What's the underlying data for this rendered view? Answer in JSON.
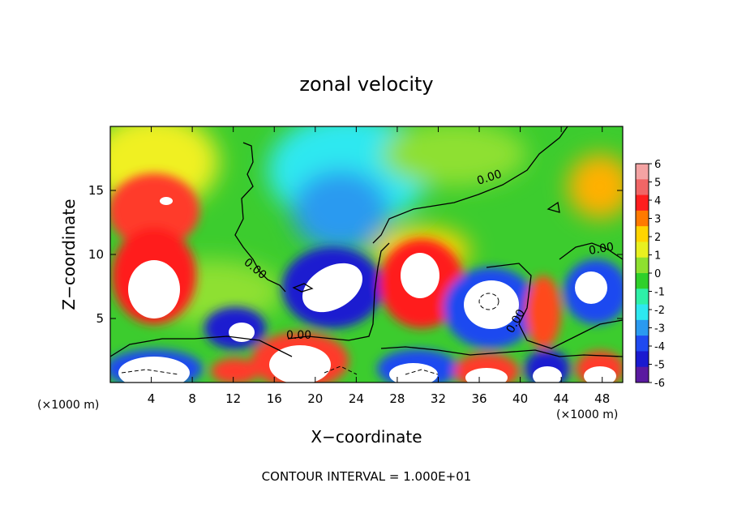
{
  "chart_data": {
    "type": "heatmap",
    "title": "zonal velocity",
    "xlabel": "X−coordinate",
    "ylabel": "Z−coordinate",
    "x_unit_left": "(×1000 m)",
    "x_unit_right": "(×1000 m)",
    "footer": "CONTOUR INTERVAL = 1.000E+01",
    "xlim": [
      0,
      50
    ],
    "ylim": [
      0,
      20
    ],
    "x_ticks": [
      4,
      8,
      12,
      16,
      20,
      24,
      28,
      32,
      36,
      40,
      44,
      48
    ],
    "y_ticks": [
      5,
      10,
      15
    ],
    "colorbar": {
      "ticks": [
        6,
        5,
        4,
        3,
        2,
        1,
        0,
        -1,
        -2,
        -3,
        -4,
        -5,
        -6
      ],
      "colors": [
        "#f4a3a3",
        "#f06666",
        "#ff1e1e",
        "#ff7a00",
        "#ffd400",
        "#e8f020",
        "#8ee030",
        "#2fd02a",
        "#2ef0a8",
        "#2ee8f0",
        "#2a9af0",
        "#1f4af0",
        "#1a1ad0",
        "#5a1aa0"
      ]
    },
    "contour_labels": [
      "0.00",
      "0.00",
      "0.00",
      "0.00",
      "0.00"
    ],
    "features": [
      {
        "x": 5,
        "z": 14.5,
        "value": 6
      },
      {
        "x": 5,
        "z": 7,
        "value": 6
      },
      {
        "x": 24,
        "z": 8,
        "value": -6
      },
      {
        "x": 30,
        "z": 8.5,
        "value": 6
      },
      {
        "x": 37,
        "z": 6.5,
        "value": -6
      },
      {
        "x": 47,
        "z": 7.5,
        "value": -6
      },
      {
        "x": 13,
        "z": 4.5,
        "value": -6
      },
      {
        "x": 20,
        "z": 2,
        "value": 6
      },
      {
        "x": 42,
        "z": 5.5,
        "value": 5
      }
    ]
  }
}
